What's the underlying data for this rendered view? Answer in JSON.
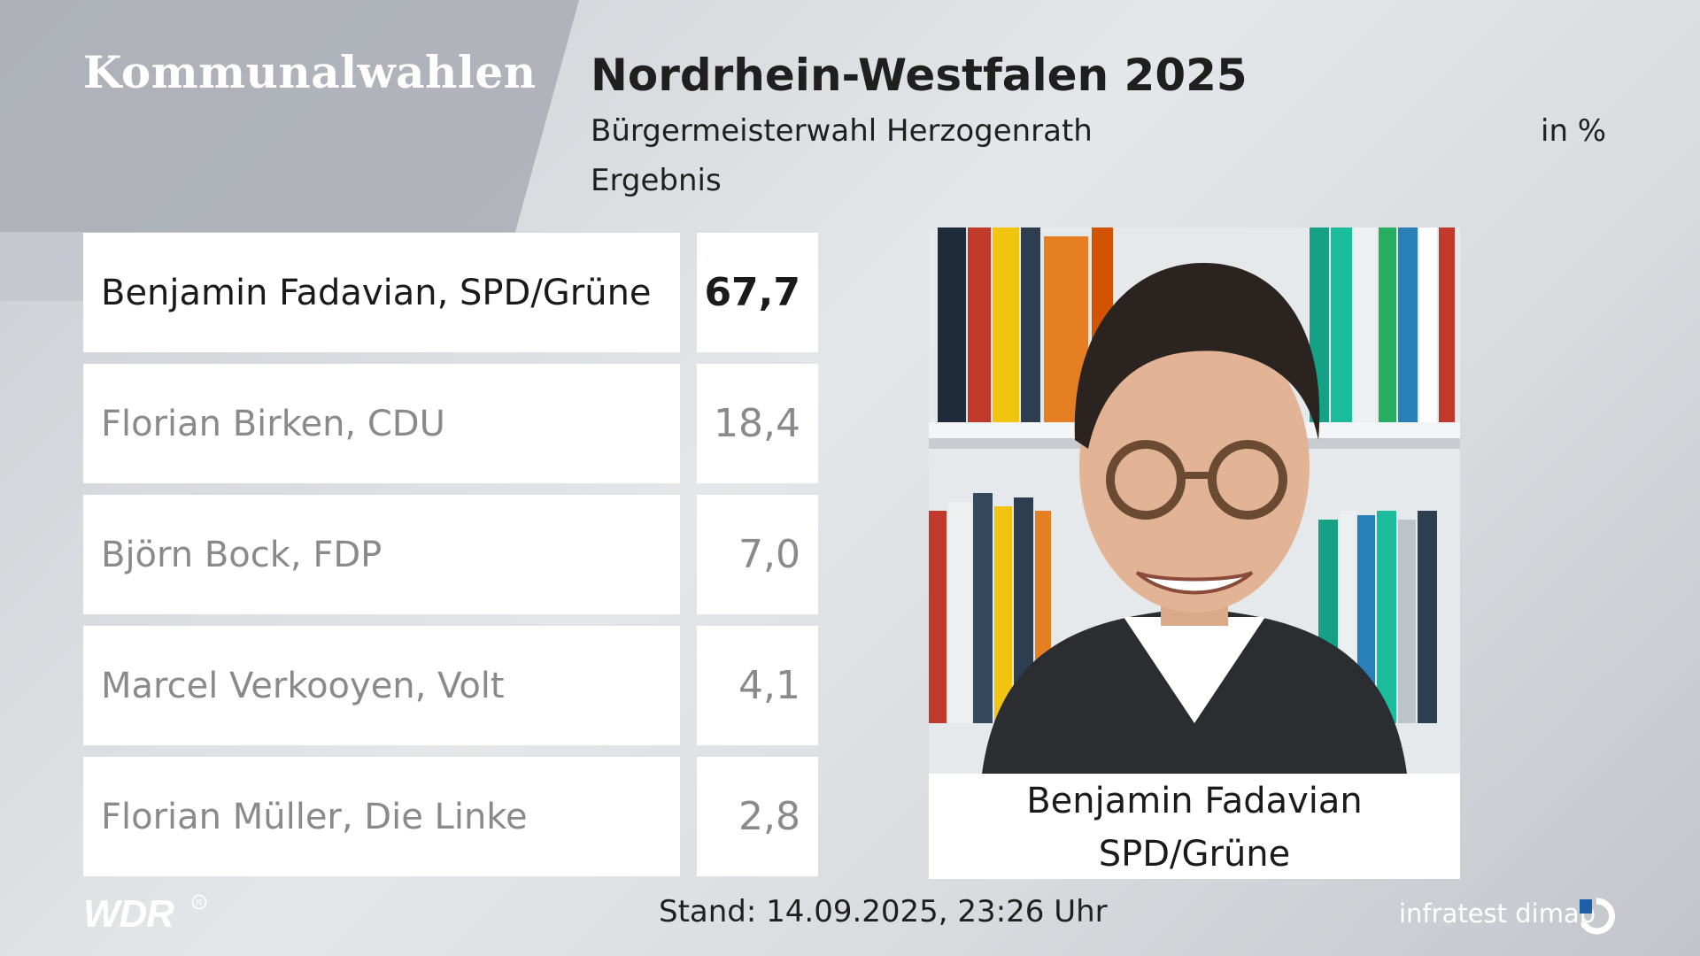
{
  "header": {
    "brand": "Kommunalwahlen",
    "title": "Nordrhein-Westfalen 2025",
    "subtitle": "Bürgermeisterwahl Herzogenrath",
    "subtitle2": "Ergebnis",
    "unit": "in %"
  },
  "candidates": [
    {
      "name": "Benjamin Fadavian, SPD/Grüne",
      "value": "67,7"
    },
    {
      "name": "Florian Birken, CDU",
      "value": "18,4"
    },
    {
      "name": "Björn Bock, FDP",
      "value": "7,0"
    },
    {
      "name": "Marcel Verkooyen, Volt",
      "value": "4,1"
    },
    {
      "name": "Florian Müller, Die Linke",
      "value": "2,8"
    }
  ],
  "winner_card": {
    "name": "Benjamin Fadavian",
    "party": "SPD/Grüne"
  },
  "footer": {
    "logo": "WDR",
    "stand": "Stand: 14.09.2025, 23:26 Uhr",
    "source": "infratest dimap"
  },
  "colors": {
    "background": "#d6d9dd",
    "panel": "#ffffff",
    "text_dark": "#1a1a1a",
    "text_muted": "#8a8a8a"
  },
  "chart_data": {
    "type": "table",
    "title": "Nordrhein-Westfalen 2025",
    "subtitle": "Bürgermeisterwahl Herzogenrath",
    "unit": "in %",
    "categories": [
      "Benjamin Fadavian, SPD/Grüne",
      "Florian Birken, CDU",
      "Björn Bock, FDP",
      "Marcel Verkooyen, Volt",
      "Florian Müller, Die Linke"
    ],
    "values": [
      67.7,
      18.4,
      7.0,
      4.1,
      2.8
    ]
  }
}
